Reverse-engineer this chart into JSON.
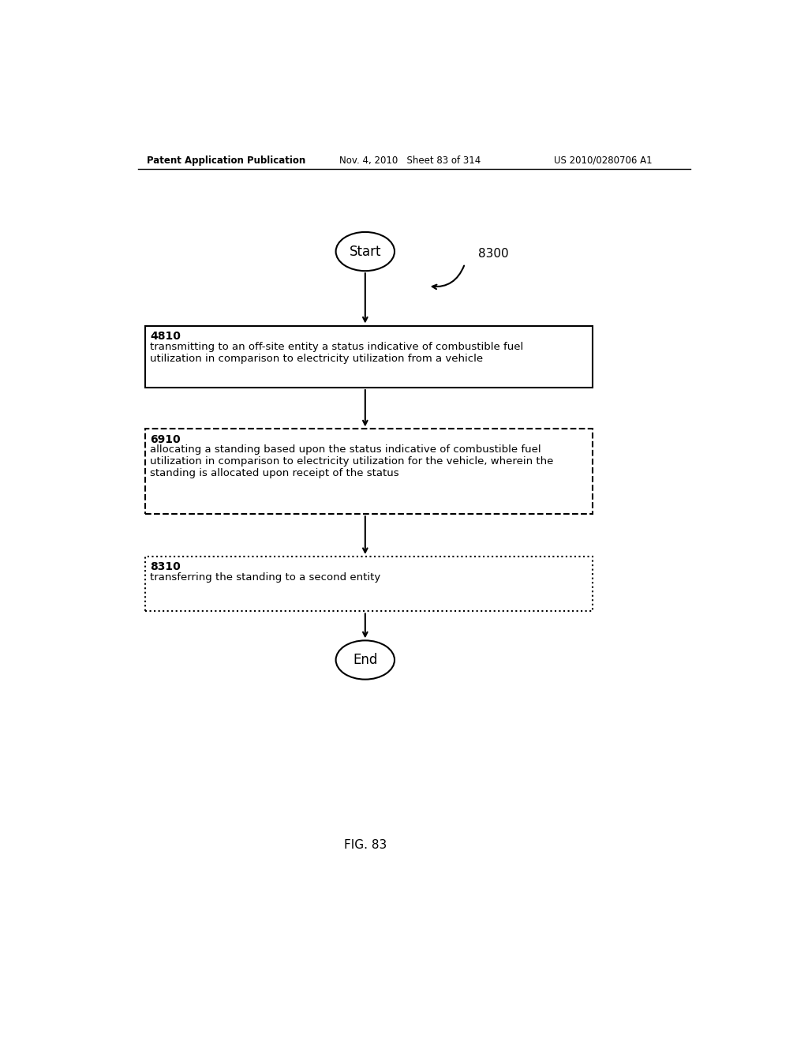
{
  "bg_color": "#ffffff",
  "header_left": "Patent Application Publication",
  "header_mid": "Nov. 4, 2010   Sheet 83 of 314",
  "header_right": "US 2010/0280706 A1",
  "fig_label": "FIG. 83",
  "diagram_label": "8300",
  "start_label": "Start",
  "end_label": "End",
  "box1_id": "4810",
  "box1_text": "transmitting to an off-site entity a status indicative of combustible fuel\nutilization in comparison to electricity utilization from a vehicle",
  "box1_style": "solid",
  "box2_id": "6910",
  "box2_text": "allocating a standing based upon the status indicative of combustible fuel\nutilization in comparison to electricity utilization for the vehicle, wherein the\nstanding is allocated upon receipt of the status",
  "box2_style": "dashed",
  "box3_id": "8310",
  "box3_text": "transferring the standing to a second entity",
  "box3_style": "dotted",
  "text_color": "#000000",
  "box_edge_color": "#000000"
}
